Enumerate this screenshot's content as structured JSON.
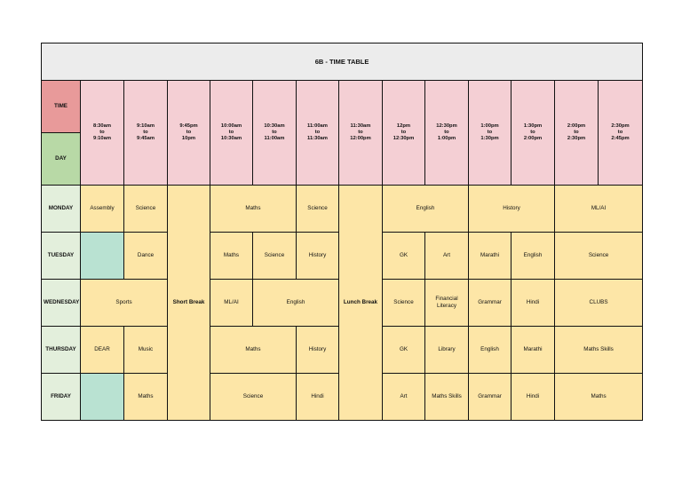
{
  "title": "6B - TIME TABLE",
  "header": {
    "time_label": "TIME",
    "day_label": "DAY",
    "slots": [
      "8:30am\nto\n9:10am",
      "9:10am\nto\n9:45am",
      "9:45pm\nto\n10pm",
      "10:00am\nto\n10:30am",
      "10:30am\nto\n11:00am",
      "11:00am\nto\n11:30am",
      "11:30am\nto\n12:00pm",
      "12pm\nto\n12:30pm",
      "12:30pm\nto\n1:00pm",
      "1:00pm\nto\n1:30pm",
      "1:30pm\nto\n2:00pm",
      "2:00pm\nto\n2:30pm",
      "2:30pm\nto\n2:45pm"
    ]
  },
  "breaks": {
    "short": "Short Break",
    "lunch": "Lunch Break"
  },
  "days": {
    "monday": {
      "name": "MONDAY",
      "assembly": "Assembly",
      "science1": "Science",
      "maths": "Maths",
      "science2": "Science",
      "english": "English",
      "history": "History",
      "mlai": "ML/AI"
    },
    "tuesday": {
      "name": "TUESDAY",
      "dance": "Dance",
      "maths": "Maths",
      "science1": "Science",
      "history": "History",
      "gk": "GK",
      "art": "Art",
      "marathi": "Marathi",
      "english": "English",
      "science2": "Science"
    },
    "wednesday": {
      "name": "WEDNESDAY",
      "sports": "Sports",
      "mlai": "ML/AI",
      "english": "English",
      "science": "Science",
      "finlit": "Financial Literacy",
      "grammar": "Grammar",
      "hindi": "Hindi",
      "clubs": "CLUBS"
    },
    "thursday": {
      "name": "THURSDAY",
      "dear": "DEAR",
      "music": "Music",
      "maths": "Maths",
      "history": "History",
      "gk": "GK",
      "library": "Library",
      "english": "English",
      "marathi": "Marathi",
      "mathsskills": "Maths Skills"
    },
    "friday": {
      "name": "FRIDAY",
      "maths1": "Maths",
      "science": "Science",
      "hindi1": "Hindi",
      "art": "Art",
      "mathsskills": "Maths Skills",
      "grammar": "Grammar",
      "hindi2": "Hindi",
      "maths2": "Maths"
    }
  },
  "colors": {
    "title_bg": "#ececec",
    "time_header": "#e89a9a",
    "day_header": "#b8d9a6",
    "slot_header": "#f4cfd4",
    "day_cell": "#e3efdc",
    "class_cell": "#fde6a7",
    "free_cell": "#b9e2d2"
  }
}
